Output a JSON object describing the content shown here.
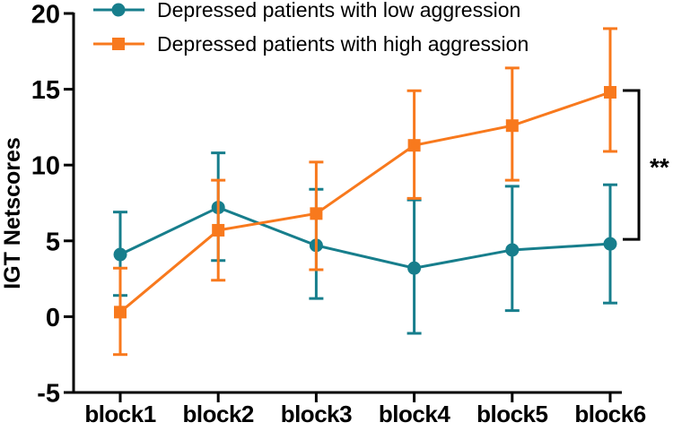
{
  "chart_data": {
    "type": "line",
    "title": "",
    "xlabel": "",
    "ylabel": "IGT Netscores",
    "categories": [
      "block1",
      "block2",
      "block3",
      "block4",
      "block5",
      "block6"
    ],
    "y_ticks": [
      20,
      15,
      10,
      5,
      0,
      -5
    ],
    "ylim": [
      -5,
      20
    ],
    "grid": false,
    "legend_position": "top-left",
    "axis_color": "#000000",
    "significance": "**",
    "series": [
      {
        "name": "Depressed patients with low aggression",
        "marker": "circle",
        "color": "#177E8C",
        "values": [
          4.1,
          7.2,
          4.7,
          3.2,
          4.4,
          4.8
        ],
        "error_upper": [
          6.9,
          10.8,
          8.4,
          7.7,
          8.6,
          8.7
        ],
        "error_lower": [
          1.4,
          3.7,
          1.2,
          -1.1,
          0.4,
          0.9
        ]
      },
      {
        "name": "Depressed patients with high aggression",
        "marker": "square",
        "color": "#F8791D",
        "values": [
          0.3,
          5.7,
          6.8,
          11.3,
          12.6,
          14.8
        ],
        "error_upper": [
          3.2,
          9.0,
          10.2,
          14.9,
          16.4,
          19.0
        ],
        "error_lower": [
          -2.5,
          2.4,
          3.1,
          7.8,
          9.0,
          10.9
        ]
      }
    ]
  }
}
